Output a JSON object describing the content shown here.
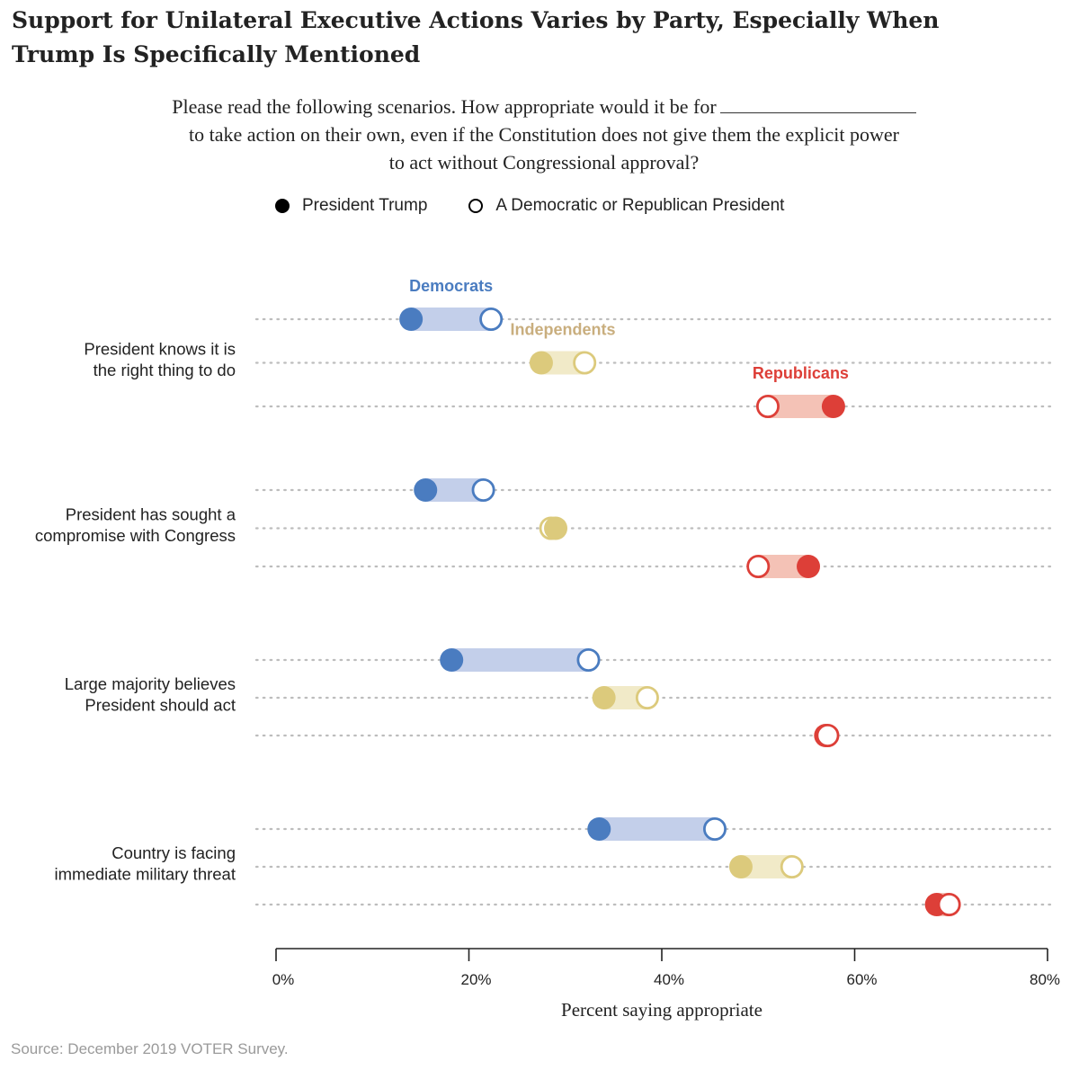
{
  "title": "Support for Unilateral Executive Actions Varies by Party, Especially When Trump Is Specifically Mentioned",
  "subtitle_line1": "Please read the following scenarios. How appropriate would it be for",
  "subtitle_line2": "to take action on their own, even if the Constitution does not give them the explicit power",
  "subtitle_line3": "to act without Congressional approval?",
  "legend": {
    "trump": "President Trump",
    "generic": "A Democratic or Republican President"
  },
  "source": "Source: December 2019 VOTER Survey.",
  "colors": {
    "Democrats": "#4a7cc0",
    "Independents": "#dcca7c",
    "Republicans": "#dd3f38",
    "Democrats_band": "#c3cfea",
    "Independents_band": "#f1eac8",
    "Republicans_band": "#f4c2b6",
    "Independents_label": "#c9ae7e"
  },
  "chart_data": {
    "type": "dumbbell",
    "xlabel": "Percent saying appropriate",
    "xlim": [
      0,
      80
    ],
    "xticks": [
      0,
      20,
      40,
      60,
      80
    ],
    "xtick_labels": [
      "0%",
      "20%",
      "40%",
      "60%",
      "80%"
    ],
    "series_keys": [
      "President Trump",
      "A Democratic or Republican President"
    ],
    "party_labels": [
      {
        "party": "Democrats",
        "text": "Democrats"
      },
      {
        "party": "Independents",
        "text": "Independents"
      },
      {
        "party": "Republicans",
        "text": "Republicans"
      }
    ],
    "groups": [
      {
        "label_lines": [
          "President knows it is",
          "the right thing to do"
        ],
        "rows": [
          {
            "party": "Democrats",
            "trump": 14,
            "generic": 22.3
          },
          {
            "party": "Independents",
            "trump": 27.5,
            "generic": 32
          },
          {
            "party": "Republicans",
            "trump": 57.8,
            "generic": 51
          }
        ]
      },
      {
        "label_lines": [
          "President has sought a",
          "compromise with Congress"
        ],
        "rows": [
          {
            "party": "Democrats",
            "trump": 15.5,
            "generic": 21.5
          },
          {
            "party": "Independents",
            "trump": 29,
            "generic": 28.5
          },
          {
            "party": "Republicans",
            "trump": 55.2,
            "generic": 50
          }
        ]
      },
      {
        "label_lines": [
          "Large majority believes",
          "President should act"
        ],
        "rows": [
          {
            "party": "Democrats",
            "trump": 18.2,
            "generic": 32.4
          },
          {
            "party": "Independents",
            "trump": 34,
            "generic": 38.5
          },
          {
            "party": "Republicans",
            "trump": 57,
            "generic": 57.2
          }
        ]
      },
      {
        "label_lines": [
          "Country is facing",
          "immediate military threat"
        ],
        "rows": [
          {
            "party": "Democrats",
            "trump": 33.5,
            "generic": 45.5
          },
          {
            "party": "Independents",
            "trump": 48.2,
            "generic": 53.5
          },
          {
            "party": "Republicans",
            "trump": 68.5,
            "generic": 69.8
          }
        ]
      }
    ]
  }
}
